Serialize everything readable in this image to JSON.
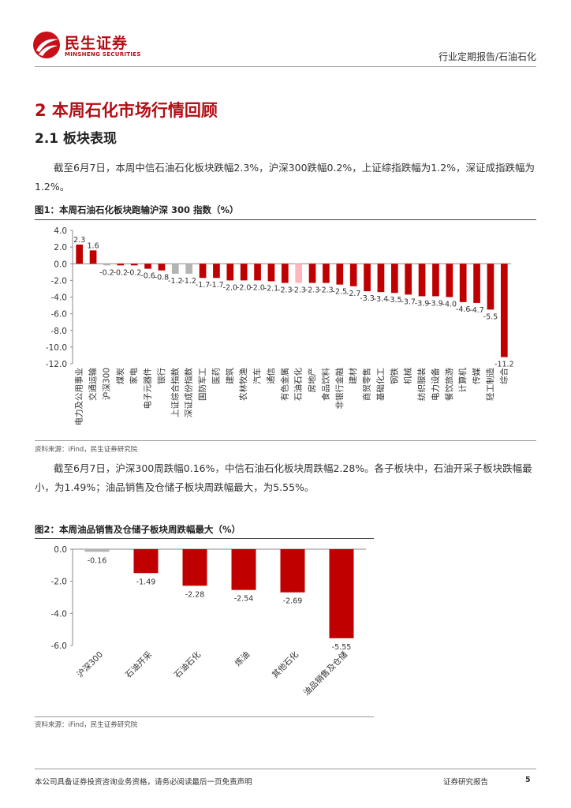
{
  "header": {
    "logo_cn": "民生证券",
    "logo_en": "MINSHENG SECURITIES",
    "category": "行业定期报告/石油石化"
  },
  "section": {
    "h1": "2 本周石化市场行情回顾",
    "h2": "2.1 板块表现"
  },
  "para1": "截至6月7日，本周中信石油石化板块跌幅2.3%，沪深300跌幅0.2%，上证综指跌幅为1.2%，深证成指跌幅为1.2%。",
  "fig1": {
    "title": "图1：本周石油石化板块跑输沪深 300 指数（%）",
    "source": "资料来源：iFind，民生证券研究院"
  },
  "para2": "截至6月7日，沪深300周跌幅0.16%，中信石油石化板块周跌幅2.28%。各子板块中，石油开采子板块跌幅最小，为1.49%；油品销售及仓储子板块周跌幅最大，为5.55%。",
  "fig2": {
    "title": "图2：本周油品销售及仓储子板块周跌幅最大（%）",
    "source": "资料来源：iFind，民生证券研究院"
  },
  "footer": {
    "disclaimer": "本公司具备证券投资咨询业务资格，请务必阅读最后一页免责声明",
    "doc_type": "证券研究报告",
    "page": "5"
  },
  "chart_data": [
    {
      "type": "bar",
      "categories": [
        "电力及公用事业",
        "交通运输",
        "沪深300",
        "煤炭",
        "家电",
        "电子元器件",
        "银行",
        "上证综合指数",
        "深证成份指数",
        "国防军工",
        "医药",
        "建筑",
        "农林牧渔",
        "汽车",
        "通信",
        "有色金属",
        "石油石化",
        "房地产",
        "食品饮料",
        "非银行金融",
        "建材",
        "商贸零售",
        "基础化工",
        "钢铁",
        "机械",
        "纺织服装",
        "电力设备",
        "餐饮旅游",
        "计算机",
        "传媒",
        "轻工制造",
        "综合"
      ],
      "values": [
        2.3,
        1.6,
        -0.2,
        -0.2,
        -0.2,
        -0.6,
        -0.8,
        -1.2,
        -1.2,
        -1.7,
        -1.7,
        -2.0,
        -2.0,
        -2.0,
        -2.1,
        -2.3,
        -2.3,
        -2.3,
        -2.3,
        -2.5,
        -2.7,
        -3.3,
        -3.4,
        -3.5,
        -3.7,
        -3.9,
        -3.9,
        -4.0,
        -4.6,
        -4.7,
        -5.5,
        -11.2
      ],
      "highlight": {
        "石油石化": "light-red",
        "上证综合指数": "gray",
        "深证成份指数": "gray"
      },
      "yticks": [
        "4.0",
        "2.0",
        "0.0",
        "-2.0",
        "-4.0",
        "-6.0",
        "-8.0",
        "-10.0",
        "-12.0"
      ],
      "ylim": [
        -12,
        4
      ],
      "colors": {
        "default": "#c00000",
        "index": "#b4b4b4",
        "highlight": "#ffb6bc"
      },
      "grid": false
    },
    {
      "type": "bar",
      "categories": [
        "沪深300",
        "石油开采",
        "石油石化",
        "炼油",
        "其他石化",
        "油品销售及仓储"
      ],
      "values": [
        -0.16,
        -1.49,
        -2.28,
        -2.54,
        -2.69,
        -5.55
      ],
      "labels": [
        "-0.16",
        "-1.49",
        "-2.28",
        "-2.54",
        "-2.69",
        "-5.55"
      ],
      "yticks": [
        "0.0",
        "-2.0",
        "-4.0",
        "-6.0"
      ],
      "ylim": [
        -6,
        0
      ],
      "colors": {
        "default": "#c00000",
        "index": "#b4b4b4",
        "highlight": "#ffb6bc"
      },
      "grid": false
    }
  ]
}
